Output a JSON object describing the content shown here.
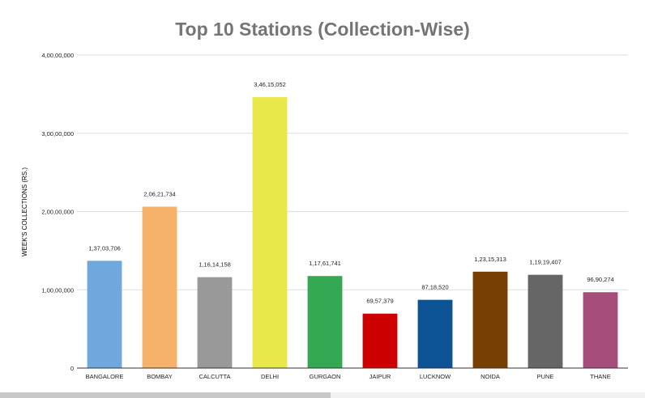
{
  "chart_data": {
    "type": "bar",
    "title": "Top 10 Stations (Collection-Wise)",
    "xlabel": "",
    "ylabel": "WEEK'S COLLECTIONS (RS.)",
    "ylim": [
      0,
      40000000
    ],
    "yticks": [
      0,
      10000000,
      20000000,
      30000000,
      40000000
    ],
    "ytick_labels": [
      "0",
      "1,00,00,000",
      "2,00,00,000",
      "3,00,00,000",
      "4,00,00,000"
    ],
    "grid": true,
    "legend": "none",
    "categories": [
      "BANGALORE",
      "BOMBAY",
      "CALCUTTA",
      "DELHI",
      "GURGAON",
      "JAIPUR",
      "LUCKNOW",
      "NOIDA",
      "PUNE",
      "THANE"
    ],
    "values": [
      13703706,
      20621734,
      11614158,
      34615052,
      11761741,
      6957379,
      8718520,
      12315313,
      11919407,
      9690274
    ],
    "value_labels": [
      "1,37,03,706",
      "2,06,21,734",
      "1,16,14,158",
      "3,46,15,052",
      "1,17,61,741",
      "69,57,379",
      "87,18,520",
      "1,23,15,313",
      "1,19,19,407",
      "96,90,274"
    ],
    "colors": [
      "#6fa8dc",
      "#f6b26b",
      "#999999",
      "#e8e84a",
      "#34a853",
      "#cc0000",
      "#0b5394",
      "#783f04",
      "#666666",
      "#a64d79"
    ]
  }
}
